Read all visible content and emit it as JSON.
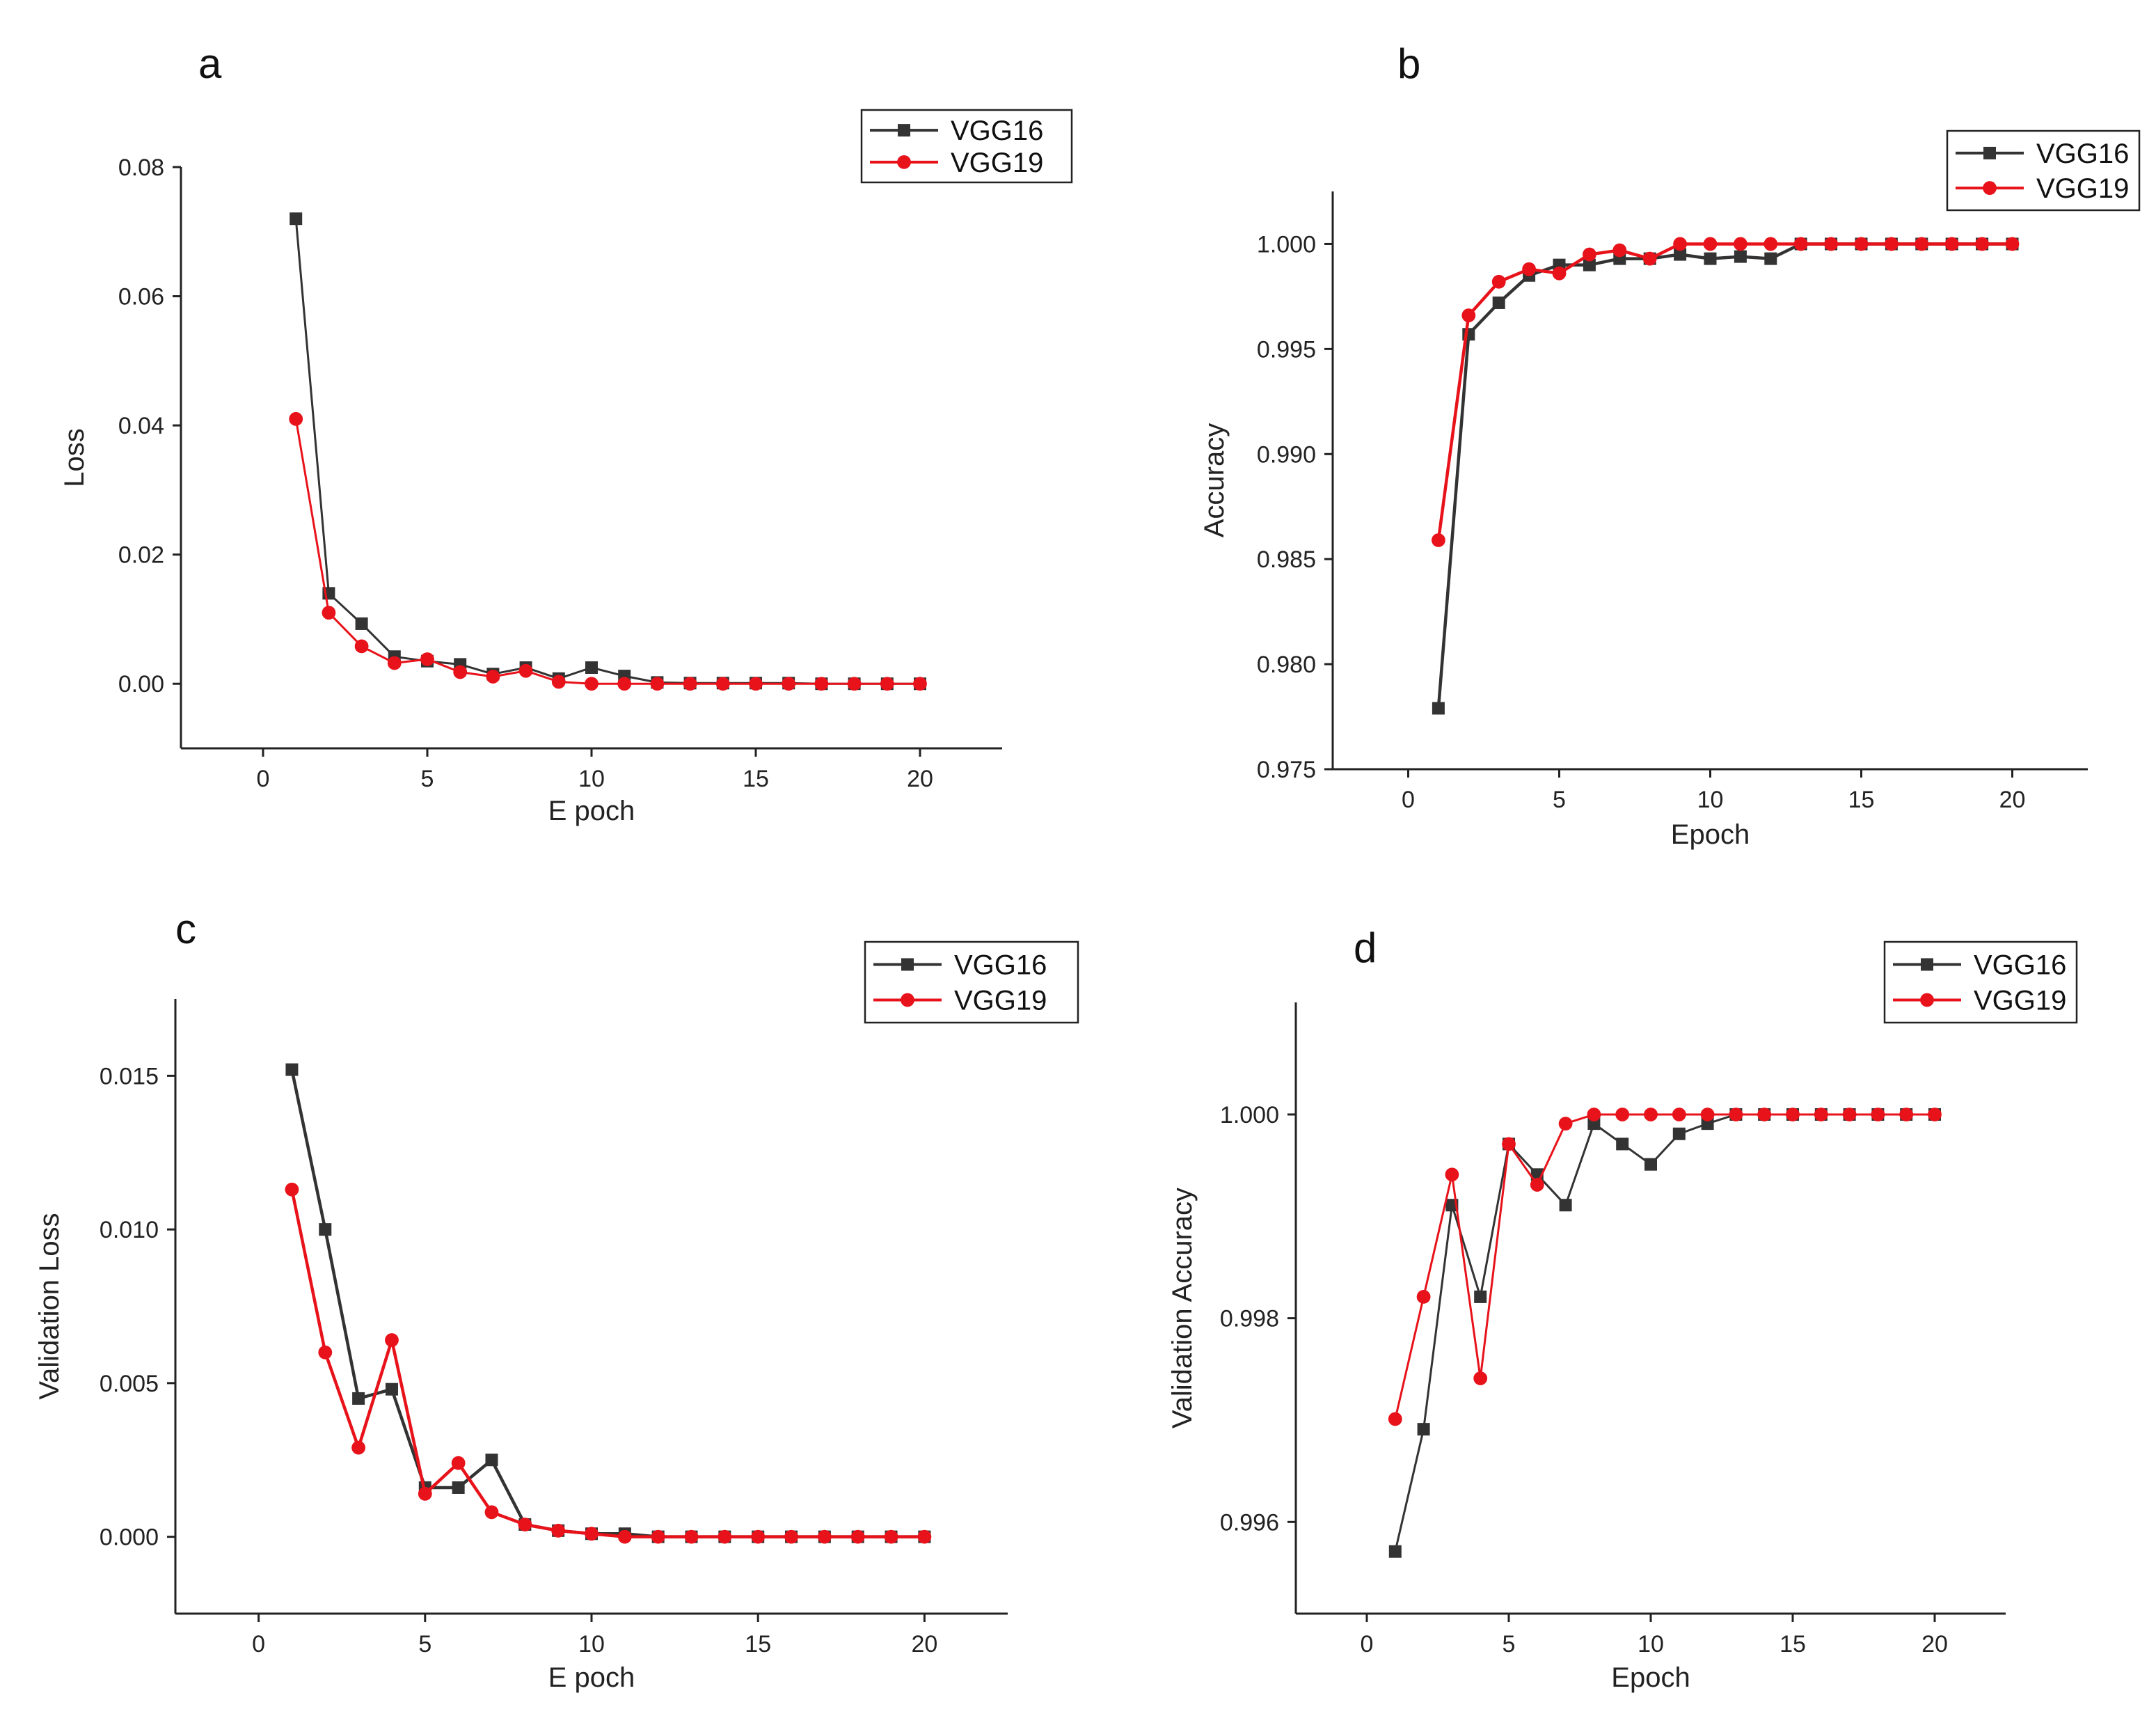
{
  "colors": {
    "vgg16": "#333333",
    "vgg19": "#e8121a",
    "axis": "#222222"
  },
  "chart_data": [
    {
      "id": "a",
      "type": "line",
      "panel_label": "a",
      "xlabel": "E poch",
      "ylabel": "Loss",
      "xlim": [
        -2.5,
        22.5
      ],
      "ylim": [
        -0.01,
        0.08
      ],
      "xticks": [
        0,
        5,
        10,
        15,
        20
      ],
      "xtick_labels": [
        "0",
        "5",
        "10",
        "15",
        "20"
      ],
      "yticks": [
        0.0,
        0.02,
        0.04,
        0.06,
        0.08
      ],
      "ytick_labels": [
        "0.00",
        "0.02",
        "0.04",
        "0.06",
        "0.08"
      ],
      "legend_position": "top-right",
      "series": [
        {
          "name": "VGG16",
          "marker": "square",
          "x": [
            1,
            2,
            3,
            4,
            5,
            6,
            7,
            8,
            9,
            10,
            11,
            12,
            13,
            14,
            15,
            16,
            17,
            18,
            19,
            20
          ],
          "y": [
            0.072,
            0.014,
            0.0093,
            0.0042,
            0.0035,
            0.003,
            0.0015,
            0.0025,
            0.0008,
            0.0025,
            0.0012,
            0.0002,
            0.0001,
            0.0001,
            0.0001,
            0.0001,
            0.0,
            0.0,
            0.0,
            0.0
          ]
        },
        {
          "name": "VGG19",
          "marker": "circle",
          "x": [
            1,
            2,
            3,
            4,
            5,
            6,
            7,
            8,
            9,
            10,
            11,
            12,
            13,
            14,
            15,
            16,
            17,
            18,
            19,
            20
          ],
          "y": [
            0.041,
            0.011,
            0.0058,
            0.0032,
            0.0038,
            0.0018,
            0.0011,
            0.002,
            0.0003,
            0.0,
            0.0,
            0.0,
            0.0,
            0.0,
            0.0,
            0.0,
            0.0,
            0.0,
            0.0,
            0.0
          ]
        }
      ]
    },
    {
      "id": "b",
      "type": "line",
      "panel_label": "b",
      "xlabel": "Epoch",
      "ylabel": "Accuracy",
      "xlim": [
        -2.5,
        22.5
      ],
      "ylim": [
        0.975,
        1.0025
      ],
      "xticks": [
        0,
        5,
        10,
        15,
        20
      ],
      "xtick_labels": [
        "0",
        "5",
        "10",
        "15",
        "20"
      ],
      "yticks": [
        0.975,
        0.98,
        0.985,
        0.99,
        0.995,
        1.0
      ],
      "ytick_labels": [
        "0.975",
        "0.980",
        "0.985",
        "0.990",
        "0.995",
        "1.000"
      ],
      "legend_position": "top-right",
      "series": [
        {
          "name": "VGG16",
          "marker": "square",
          "x": [
            1,
            2,
            3,
            4,
            5,
            6,
            7,
            8,
            9,
            10,
            11,
            12,
            13,
            14,
            15,
            16,
            17,
            18,
            19,
            20
          ],
          "y": [
            0.9779,
            0.9957,
            0.9972,
            0.9985,
            0.999,
            0.999,
            0.9993,
            0.9993,
            0.9995,
            0.9993,
            0.9994,
            0.9993,
            1.0,
            1.0,
            1.0,
            1.0,
            1.0,
            1.0,
            1.0,
            1.0
          ]
        },
        {
          "name": "VGG19",
          "marker": "circle",
          "x": [
            1,
            2,
            3,
            4,
            5,
            6,
            7,
            8,
            9,
            10,
            11,
            12,
            13,
            14,
            15,
            16,
            17,
            18,
            19,
            20
          ],
          "y": [
            0.9859,
            0.9966,
            0.9982,
            0.9988,
            0.9986,
            0.9995,
            0.9997,
            0.9993,
            1.0,
            1.0,
            1.0,
            1.0,
            1.0,
            1.0,
            1.0,
            1.0,
            1.0,
            1.0,
            1.0,
            1.0
          ]
        }
      ]
    },
    {
      "id": "c",
      "type": "line",
      "panel_label": "c",
      "xlabel": "E poch",
      "ylabel": "Validation Loss",
      "xlim": [
        -2.5,
        22.5
      ],
      "ylim": [
        -0.0025,
        0.0175
      ],
      "xticks": [
        0,
        5,
        10,
        15,
        20
      ],
      "xtick_labels": [
        "0",
        "5",
        "10",
        "15",
        "20"
      ],
      "yticks": [
        0.0,
        0.005,
        0.01,
        0.015
      ],
      "ytick_labels": [
        "0.000",
        "0.005",
        "0.010",
        "0.015"
      ],
      "legend_position": "top-right",
      "series": [
        {
          "name": "VGG16",
          "marker": "square",
          "x": [
            1,
            2,
            3,
            4,
            5,
            6,
            7,
            8,
            9,
            10,
            11,
            12,
            13,
            14,
            15,
            16,
            17,
            18,
            19,
            20
          ],
          "y": [
            0.0152,
            0.01,
            0.0045,
            0.0048,
            0.0016,
            0.0016,
            0.0025,
            0.0004,
            0.0002,
            0.0001,
            0.0001,
            0.0,
            0.0,
            0.0,
            0.0,
            0.0,
            0.0,
            0.0,
            0.0,
            0.0
          ]
        },
        {
          "name": "VGG19",
          "marker": "circle",
          "x": [
            1,
            2,
            3,
            4,
            5,
            6,
            7,
            8,
            9,
            10,
            11,
            12,
            13,
            14,
            15,
            16,
            17,
            18,
            19,
            20
          ],
          "y": [
            0.0113,
            0.006,
            0.0029,
            0.0064,
            0.0014,
            0.0024,
            0.0008,
            0.0004,
            0.0002,
            0.0001,
            0.0,
            0.0,
            0.0,
            0.0,
            0.0,
            0.0,
            0.0,
            0.0,
            0.0,
            0.0
          ]
        }
      ]
    },
    {
      "id": "d",
      "type": "line",
      "panel_label": "d",
      "xlabel": "Epoch",
      "ylabel": "Validation Accuracy",
      "xlim": [
        -2.5,
        22.5
      ],
      "ylim": [
        0.9951,
        1.0011
      ],
      "xticks": [
        0,
        5,
        10,
        15,
        20
      ],
      "xtick_labels": [
        "0",
        "5",
        "10",
        "15",
        "20"
      ],
      "yticks": [
        0.996,
        0.998,
        1.0
      ],
      "ytick_labels": [
        "0.996",
        "0.998",
        "1.000"
      ],
      "legend_position": "top-right",
      "series": [
        {
          "name": "VGG16",
          "marker": "square",
          "x": [
            1,
            2,
            3,
            4,
            5,
            6,
            7,
            8,
            9,
            10,
            11,
            12,
            13,
            14,
            15,
            16,
            17,
            18,
            19,
            20
          ],
          "y": [
            0.99571,
            0.99691,
            0.99911,
            0.99821,
            0.99971,
            0.99941,
            0.99911,
            0.99991,
            0.99971,
            0.99951,
            0.99981,
            0.99991,
            1.0,
            1.0,
            1.0,
            1.0,
            1.0,
            1.0,
            1.0,
            1.0
          ]
        },
        {
          "name": "VGG19",
          "marker": "circle",
          "x": [
            1,
            2,
            3,
            4,
            5,
            6,
            7,
            8,
            9,
            10,
            11,
            12,
            13,
            14,
            15,
            16,
            17,
            18,
            19,
            20
          ],
          "y": [
            0.99701,
            0.99821,
            0.99941,
            0.99741,
            0.99971,
            0.99931,
            0.99991,
            1.0,
            1.0,
            1.0,
            1.0,
            1.0,
            1.0,
            1.0,
            1.0,
            1.0,
            1.0,
            1.0,
            1.0,
            1.0
          ]
        }
      ]
    }
  ]
}
